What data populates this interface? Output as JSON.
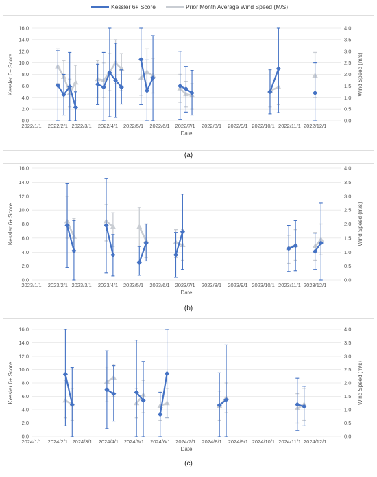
{
  "legend": {
    "items": [
      {
        "label": "Kessler 6+ Score",
        "color": "#4472C4"
      },
      {
        "label": "Prior Month Average Wind Speed (M/S)",
        "color": "#C9CDD3"
      }
    ]
  },
  "colors": {
    "kessler": "#4472C4",
    "wind": "#C9CDD3",
    "grid": "#D9D9D9"
  },
  "chart_data": [
    {
      "type": "line",
      "panel_label": "(a)",
      "xlabel": "Date",
      "ylabel": "Kessler 6+ Score",
      "y2label": "Wind Speed (m/s)",
      "ylim": [
        0,
        16
      ],
      "y2lim": [
        0,
        4
      ],
      "yticks": [
        "0.0",
        "2.0",
        "4.0",
        "6.0",
        "8.0",
        "10.0",
        "12.0",
        "14.0",
        "16.0"
      ],
      "y2ticks": [
        "0.0",
        "0.5",
        "1.0",
        "1.5",
        "2.0",
        "2.5",
        "3.0",
        "3.5",
        "4.0"
      ],
      "xlim": [
        "2022-01-01",
        "2023-01-01"
      ],
      "xticks": [
        {
          "label": "2022/1/1",
          "date": "2022-01-01"
        },
        {
          "label": "2022/2/1",
          "date": "2022-02-01"
        },
        {
          "label": "2022/3/1",
          "date": "2022-03-01"
        },
        {
          "label": "2022/4/1",
          "date": "2022-04-01"
        },
        {
          "label": "2022/5/1",
          "date": "2022-05-01"
        },
        {
          "label": "2022/6/1",
          "date": "2022-06-01"
        },
        {
          "label": "2022/7/1",
          "date": "2022-07-01"
        },
        {
          "label": "2022/8/1",
          "date": "2022-08-01"
        },
        {
          "label": "2022/9/1",
          "date": "2022-09-01"
        },
        {
          "label": "2022/10/1",
          "date": "2022-10-01"
        },
        {
          "label": "2022/11/1",
          "date": "2022-11-01"
        },
        {
          "label": "2022/12/1",
          "date": "2022-12-01"
        }
      ],
      "series": [
        {
          "name": "Kessler 6+ Score",
          "axis": "left",
          "segments": [
            [
              [
                "2022-02-01",
                6.1,
                0.0,
                12.1
              ],
              [
                "2022-02-08",
                4.5,
                1.0,
                8.0
              ],
              [
                "2022-02-15",
                5.9,
                0.0,
                11.8
              ],
              [
                "2022-02-22",
                2.3,
                0.0,
                5.0
              ]
            ],
            [
              [
                "2022-03-20",
                6.3,
                2.8,
                9.8
              ],
              [
                "2022-03-27",
                5.8,
                0.0,
                11.8
              ],
              [
                "2022-04-03",
                8.3,
                0.7,
                16.0
              ],
              [
                "2022-04-10",
                7.0,
                0.6,
                13.4
              ],
              [
                "2022-04-17",
                5.8,
                2.9,
                8.8
              ]
            ],
            [
              [
                "2022-05-10",
                10.6,
                2.8,
                16.0
              ],
              [
                "2022-05-17",
                5.2,
                0.0,
                10.5
              ],
              [
                "2022-05-24",
                7.4,
                0.0,
                14.7
              ]
            ],
            [
              [
                "2022-06-25",
                6.0,
                0.2,
                12.0
              ],
              [
                "2022-07-02",
                5.5,
                1.5,
                9.4
              ],
              [
                "2022-07-09",
                4.8,
                1.0,
                8.7
              ]
            ],
            [
              [
                "2022-10-09",
                5.0,
                1.2,
                8.9
              ],
              [
                "2022-10-19",
                9.0,
                1.4,
                16.0
              ]
            ],
            [
              [
                "2022-12-01",
                4.8,
                0.0,
                10.0
              ]
            ]
          ]
        },
        {
          "name": "Prior Month Average Wind Speed (M/S)",
          "axis": "right",
          "segments": [
            [
              [
                "2022-02-01",
                2.35,
                1.6,
                3.1
              ],
              [
                "2022-02-08",
                1.9,
                1.2,
                2.6
              ],
              [
                "2022-02-15",
                1.2,
                0.6,
                1.8
              ],
              [
                "2022-02-22",
                1.65,
                0.9,
                2.4
              ]
            ],
            [
              [
                "2022-03-20",
                1.8,
                1.0,
                2.6
              ],
              [
                "2022-03-27",
                1.75,
                1.0,
                2.5
              ],
              [
                "2022-04-03",
                2.1,
                1.3,
                2.9
              ],
              [
                "2022-04-10",
                2.5,
                1.6,
                3.5
              ],
              [
                "2022-04-17",
                2.25,
                1.3,
                2.9
              ]
            ],
            [
              [
                "2022-05-10",
                1.85,
                1.1,
                2.6
              ],
              [
                "2022-05-17",
                2.1,
                1.3,
                3.1
              ],
              [
                "2022-05-24",
                1.95,
                1.2,
                2.7
              ]
            ],
            [
              [
                "2022-06-25",
                1.4,
                0.8,
                2.0
              ],
              [
                "2022-07-02",
                1.15,
                0.6,
                1.7
              ],
              [
                "2022-07-09",
                1.1,
                0.5,
                1.6
              ]
            ],
            [
              [
                "2022-10-09",
                1.3,
                0.6,
                2.2
              ],
              [
                "2022-10-19",
                1.45,
                0.7,
                2.3
              ]
            ],
            [
              [
                "2022-12-01",
                1.95,
                1.0,
                2.95
              ]
            ]
          ]
        }
      ]
    },
    {
      "type": "line",
      "panel_label": "(b)",
      "xlabel": "Date",
      "ylabel": "Kessler 6+ Score",
      "y2label": "Wind Speed (m/s)",
      "ylim": [
        0,
        16
      ],
      "y2lim": [
        0,
        4
      ],
      "yticks": [
        "0.0",
        "2.0",
        "4.0",
        "6.0",
        "8.0",
        "10.0",
        "12.0",
        "14.0",
        "16.0"
      ],
      "y2ticks": [
        "0.0",
        "0.5",
        "1.0",
        "1.5",
        "2.0",
        "2.5",
        "3.0",
        "3.5",
        "4.0"
      ],
      "xlim": [
        "2023-01-01",
        "2024-01-01"
      ],
      "xticks": [
        {
          "label": "2023/1/1",
          "date": "2023-01-01"
        },
        {
          "label": "2023/2/1",
          "date": "2023-02-01"
        },
        {
          "label": "2023/3/1",
          "date": "2023-03-01"
        },
        {
          "label": "2023/4/1",
          "date": "2023-04-01"
        },
        {
          "label": "2023/5/1",
          "date": "2023-05-01"
        },
        {
          "label": "2023/6/1",
          "date": "2023-06-01"
        },
        {
          "label": "2023/7/1",
          "date": "2023-07-01"
        },
        {
          "label": "2023/8/1",
          "date": "2023-08-01"
        },
        {
          "label": "2023/9/1",
          "date": "2023-09-01"
        },
        {
          "label": "2023/10/1",
          "date": "2023-10-01"
        },
        {
          "label": "2023/11/1",
          "date": "2023-11-01"
        },
        {
          "label": "2023/12/1",
          "date": "2023-12-01"
        }
      ],
      "series": [
        {
          "name": "Kessler 6+ Score",
          "axis": "left",
          "segments": [
            [
              [
                "2023-02-12",
                7.8,
                1.8,
                13.8
              ],
              [
                "2023-02-20",
                4.2,
                0.0,
                8.5
              ]
            ],
            [
              [
                "2023-03-30",
                7.8,
                1.0,
                14.5
              ],
              [
                "2023-04-07",
                3.6,
                0.6,
                6.5
              ]
            ],
            [
              [
                "2023-05-08",
                2.5,
                0.7,
                4.8
              ],
              [
                "2023-05-16",
                5.3,
                2.7,
                8.0
              ]
            ],
            [
              [
                "2023-06-20",
                3.6,
                0.4,
                6.8
              ],
              [
                "2023-06-28",
                6.9,
                1.5,
                12.3
              ]
            ],
            [
              [
                "2023-10-31",
                4.5,
                1.2,
                7.8
              ],
              [
                "2023-11-08",
                4.9,
                1.3,
                8.5
              ]
            ],
            [
              [
                "2023-12-01",
                4.1,
                1.5,
                6.7
              ],
              [
                "2023-12-08",
                5.3,
                0.0,
                11.0
              ]
            ]
          ]
        },
        {
          "name": "Prior Month Average Wind Speed (M/S)",
          "axis": "right",
          "segments": [
            [
              [
                "2023-02-12",
                2.1,
                1.5,
                3.0
              ],
              [
                "2023-02-20",
                1.55,
                1.0,
                2.2
              ]
            ],
            [
              [
                "2023-03-30",
                2.1,
                1.4,
                2.7
              ],
              [
                "2023-04-07",
                1.9,
                1.2,
                2.4
              ]
            ],
            [
              [
                "2023-05-08",
                1.9,
                1.2,
                2.6
              ],
              [
                "2023-05-16",
                1.4,
                0.8,
                2.0
              ]
            ],
            [
              [
                "2023-06-20",
                1.35,
                0.8,
                1.8
              ],
              [
                "2023-06-28",
                1.25,
                0.7,
                1.8
              ]
            ],
            [
              [
                "2023-10-31",
                1.15,
                0.6,
                1.6
              ],
              [
                "2023-11-08",
                1.25,
                0.7,
                1.8
              ]
            ],
            [
              [
                "2023-12-01",
                1.2,
                0.7,
                1.7
              ],
              [
                "2023-12-08",
                1.45,
                0.9,
                2.0
              ]
            ]
          ]
        }
      ]
    },
    {
      "type": "line",
      "panel_label": "(c)",
      "xlabel": "Date",
      "ylabel": "Kessler 6+ Score",
      "y2label": "Wind Speed (m/s)",
      "ylim": [
        0,
        16
      ],
      "y2lim": [
        0,
        4
      ],
      "yticks": [
        "0.0",
        "2.0",
        "4.0",
        "6.0",
        "8.0",
        "10.0",
        "12.0",
        "14.0",
        "16.0"
      ],
      "y2ticks": [
        "0.0",
        "0.5",
        "1.0",
        "1.5",
        "2.0",
        "2.5",
        "3.0",
        "3.5",
        "4.0"
      ],
      "xlim": [
        "2024-01-01",
        "2025-01-01"
      ],
      "xticks": [
        {
          "label": "2024/1/1",
          "date": "2024-01-01"
        },
        {
          "label": "2024/2/1",
          "date": "2024-02-01"
        },
        {
          "label": "2024/3/1",
          "date": "2024-03-01"
        },
        {
          "label": "2024/4/1",
          "date": "2024-04-01"
        },
        {
          "label": "2024/5/1",
          "date": "2024-05-01"
        },
        {
          "label": "2024/6/1",
          "date": "2024-06-01"
        },
        {
          "label": "2024/7/1",
          "date": "2024-07-01"
        },
        {
          "label": "2024/8/1",
          "date": "2024-08-01"
        },
        {
          "label": "2024/9/1",
          "date": "2024-09-01"
        },
        {
          "label": "2024/10/1",
          "date": "2024-10-01"
        },
        {
          "label": "2024/11/1",
          "date": "2024-11-01"
        },
        {
          "label": "2024/12/1",
          "date": "2024-12-01"
        }
      ],
      "series": [
        {
          "name": "Kessler 6+ Score",
          "axis": "left",
          "segments": [
            [
              [
                "2024-02-10",
                9.3,
                1.6,
                16.0
              ],
              [
                "2024-02-18",
                4.8,
                0.0,
                10.3
              ]
            ],
            [
              [
                "2024-03-30",
                7.0,
                1.2,
                12.8
              ],
              [
                "2024-04-07",
                6.4,
                2.3,
                10.6
              ]
            ],
            [
              [
                "2024-05-04",
                6.6,
                0.0,
                14.4
              ],
              [
                "2024-05-12",
                5.4,
                0.0,
                11.2
              ]
            ],
            [
              [
                "2024-06-01",
                3.3,
                0.0,
                6.6
              ],
              [
                "2024-06-09",
                9.4,
                2.9,
                16.0
              ]
            ],
            [
              [
                "2024-08-10",
                4.7,
                0.0,
                9.5
              ],
              [
                "2024-08-18",
                5.5,
                0.0,
                13.7
              ]
            ],
            [
              [
                "2024-11-10",
                4.8,
                0.9,
                8.7
              ],
              [
                "2024-11-18",
                4.5,
                1.6,
                7.5
              ]
            ]
          ]
        },
        {
          "name": "Prior Month Average Wind Speed (M/S)",
          "axis": "right",
          "segments": [
            [
              [
                "2024-02-10",
                1.35,
                0.7,
                2.1
              ],
              [
                "2024-02-18",
                1.2,
                0.6,
                1.8
              ]
            ],
            [
              [
                "2024-03-30",
                2.05,
                1.3,
                2.6
              ],
              [
                "2024-04-07",
                2.2,
                1.5,
                2.7
              ]
            ],
            [
              [
                "2024-05-04",
                1.25,
                0.7,
                1.8
              ],
              [
                "2024-05-12",
                1.55,
                0.9,
                2.1
              ]
            ],
            [
              [
                "2024-06-01",
                1.15,
                0.6,
                1.7
              ],
              [
                "2024-06-09",
                1.25,
                0.7,
                1.8
              ]
            ],
            [
              [
                "2024-08-10",
                1.15,
                0.6,
                1.7
              ],
              [
                "2024-08-18",
                1.45,
                0.9,
                2.0
              ]
            ],
            [
              [
                "2024-11-10",
                1.05,
                0.5,
                1.6
              ],
              [
                "2024-11-18",
                1.2,
                0.6,
                1.8
              ]
            ]
          ]
        }
      ]
    }
  ]
}
